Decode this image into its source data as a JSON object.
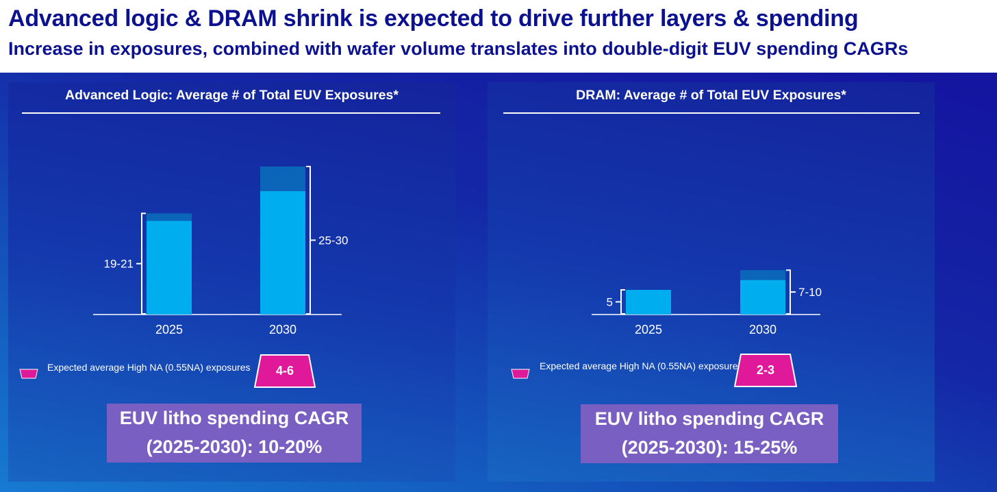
{
  "header": {
    "title": "Advanced logic & DRAM shrink is expected to drive further layers & spending",
    "subtitle": "Increase in exposures, combined with wafer volume translates into double-digit EUV spending CAGRs"
  },
  "colors": {
    "title": "#0c1190",
    "bar_main": "#00aeef",
    "bar_high_na": "#0b65b8",
    "trapezoid": "#e0199b",
    "cagr_box": "#7a5fc2"
  },
  "panels": [
    {
      "title": "Advanced Logic: Average # of Total EUV Exposures*",
      "legend_text": "Expected average High NA (0.55NA) exposures",
      "high_na_label": "4-6",
      "cagr_line1": "EUV litho spending CAGR",
      "cagr_line2": "(2025-2030): 10-20%"
    },
    {
      "title": "DRAM: Average # of Total EUV Exposures*",
      "legend_text": "Expected average High NA (0.55NA) exposures",
      "high_na_label": "2-3",
      "cagr_line1": "EUV litho spending CAGR",
      "cagr_line2": "(2025-2030): 15-25%"
    }
  ],
  "chart_data": [
    {
      "type": "bar",
      "title": "Advanced Logic: Average # of Total EUV Exposures*",
      "categories": [
        "2025",
        "2030"
      ],
      "series": [
        {
          "values": [
            19,
            25
          ]
        },
        {
          "values": [
            1.5,
            5
          ]
        }
      ],
      "range_labels": [
        "19-21",
        "25-30"
      ],
      "stacked": true,
      "ylim": [
        0,
        34
      ]
    },
    {
      "type": "bar",
      "title": "DRAM: Average # of Total EUV Exposures*",
      "categories": [
        "2025",
        "2030"
      ],
      "series": [
        {
          "values": [
            5,
            7
          ]
        },
        {
          "values": [
            0,
            2
          ]
        }
      ],
      "range_labels": [
        "5",
        "7-10"
      ],
      "stacked": true,
      "ylim": [
        0,
        34
      ]
    }
  ]
}
